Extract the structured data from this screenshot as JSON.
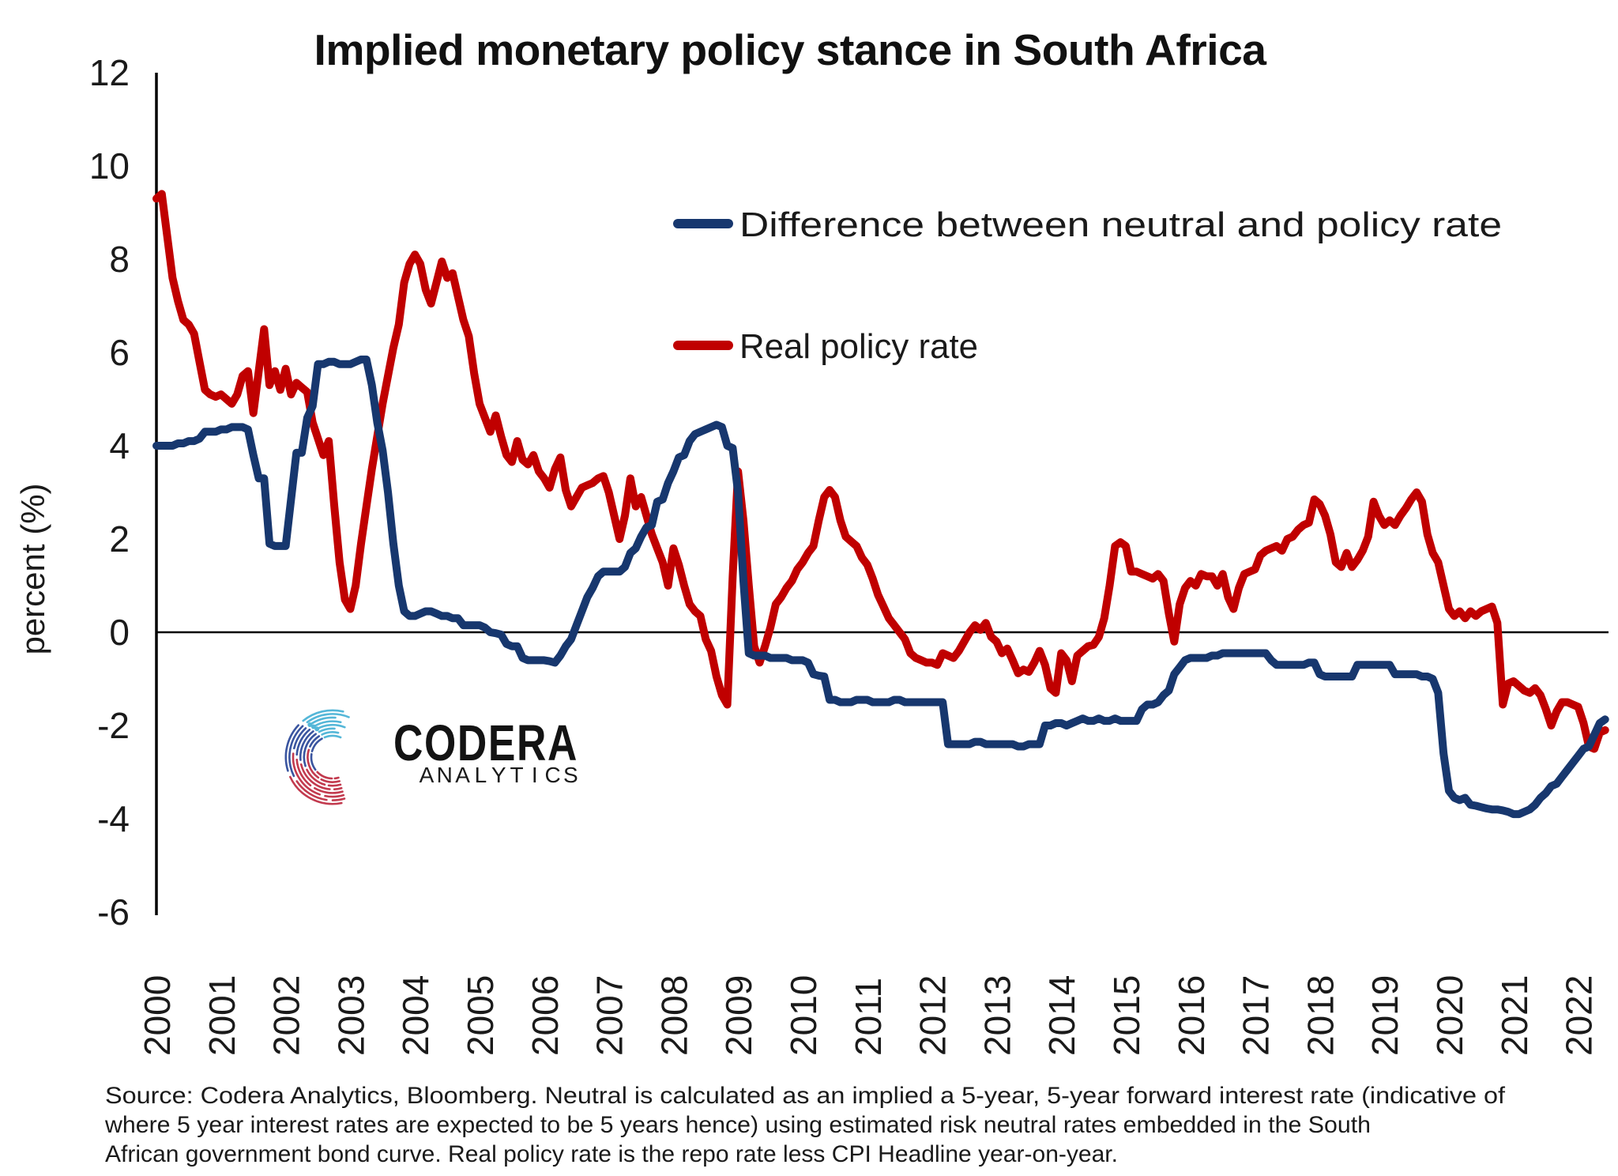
{
  "title": "Implied monetary policy stance in South Africa",
  "legend": {
    "items": [
      {
        "label": "Difference between neutral and policy rate",
        "color": "#17376e"
      },
      {
        "label": "Real policy rate",
        "color": "#c00000"
      }
    ]
  },
  "y_axis": {
    "label": "percent (%)",
    "ticks": [
      "12",
      "10",
      "8",
      "6",
      "4",
      "2",
      "0",
      "-2",
      "-4",
      "-6"
    ],
    "tick_values": [
      12,
      10,
      8,
      6,
      4,
      2,
      0,
      -2,
      -4,
      -6
    ]
  },
  "x_axis": {
    "years": [
      "2000",
      "2001",
      "2002",
      "2003",
      "2004",
      "2005",
      "2006",
      "2007",
      "2008",
      "2009",
      "2010",
      "2011",
      "2012",
      "2013",
      "2014",
      "2015",
      "2016",
      "2017",
      "2018",
      "2019",
      "2020",
      "2021",
      "2022"
    ]
  },
  "source": {
    "lines": [
      "Source: Codera Analytics, Bloomberg. Neutral is calculated as an implied a 5-year, 5-year forward interest rate (indicative of",
      "where 5 year interest rates are expected to be 5 years hence) using estimated risk neutral rates embedded in the South",
      "African government bond curve. Real policy rate is the repo rate less CPI Headline year-on-year."
    ]
  },
  "logo": {
    "name": "CODERA",
    "analytics": "ANALYTICS",
    "analytics_colors": [
      "#c45a66",
      "#c45a66",
      "#c05a6b",
      "#b95e78",
      "#8f7aa9",
      "#7fb0d4",
      "#7fb0d4",
      "#82b4d8",
      "#85b8d6"
    ],
    "arc_colors": {
      "teal": "#55b7d8",
      "blue": "#3a55a0",
      "red": "#c23a4e"
    }
  },
  "chart_data": {
    "type": "line",
    "frequency": "monthly",
    "x_start": "2000-01",
    "x_end": "2022-06",
    "xlabel": "",
    "ylabel": "percent (%)",
    "ylim": [
      -6,
      12
    ],
    "grid": false,
    "legend_position": "upper right inside plot",
    "series": [
      {
        "name": "Difference between neutral and policy rate",
        "color": "#17376e",
        "values": [
          4.0,
          4.0,
          4.0,
          4.0,
          4.05,
          4.05,
          4.1,
          4.1,
          4.15,
          4.3,
          4.3,
          4.3,
          4.35,
          4.35,
          4.4,
          4.4,
          4.4,
          4.35,
          3.8,
          3.3,
          3.3,
          1.9,
          1.85,
          1.85,
          1.85,
          2.85,
          3.85,
          3.85,
          4.6,
          4.85,
          5.75,
          5.75,
          5.8,
          5.8,
          5.75,
          5.75,
          5.75,
          5.8,
          5.85,
          5.85,
          5.3,
          4.5,
          3.9,
          3.0,
          1.9,
          1.0,
          0.45,
          0.35,
          0.35,
          0.4,
          0.45,
          0.45,
          0.4,
          0.35,
          0.35,
          0.3,
          0.3,
          0.15,
          0.15,
          0.15,
          0.15,
          0.1,
          0.0,
          -0.02,
          -0.05,
          -0.25,
          -0.3,
          -0.3,
          -0.55,
          -0.6,
          -0.6,
          -0.6,
          -0.6,
          -0.62,
          -0.65,
          -0.5,
          -0.3,
          -0.15,
          0.15,
          0.45,
          0.75,
          0.95,
          1.2,
          1.3,
          1.3,
          1.3,
          1.3,
          1.4,
          1.7,
          1.8,
          2.05,
          2.25,
          2.3,
          2.8,
          2.85,
          3.2,
          3.45,
          3.75,
          3.8,
          4.1,
          4.25,
          4.3,
          4.35,
          4.4,
          4.45,
          4.4,
          4.0,
          3.95,
          3.0,
          1.1,
          -0.45,
          -0.5,
          -0.5,
          -0.5,
          -0.55,
          -0.55,
          -0.55,
          -0.55,
          -0.6,
          -0.6,
          -0.6,
          -0.65,
          -0.9,
          -0.93,
          -0.95,
          -1.45,
          -1.45,
          -1.5,
          -1.5,
          -1.5,
          -1.45,
          -1.45,
          -1.45,
          -1.5,
          -1.5,
          -1.5,
          -1.5,
          -1.45,
          -1.45,
          -1.5,
          -1.5,
          -1.5,
          -1.5,
          -1.5,
          -1.5,
          -1.5,
          -1.5,
          -2.4,
          -2.4,
          -2.4,
          -2.4,
          -2.4,
          -2.35,
          -2.35,
          -2.4,
          -2.4,
          -2.4,
          -2.4,
          -2.4,
          -2.4,
          -2.45,
          -2.45,
          -2.4,
          -2.4,
          -2.4,
          -2.0,
          -2.0,
          -1.95,
          -1.95,
          -2.0,
          -1.95,
          -1.9,
          -1.85,
          -1.9,
          -1.9,
          -1.85,
          -1.9,
          -1.9,
          -1.85,
          -1.9,
          -1.9,
          -1.9,
          -1.9,
          -1.65,
          -1.55,
          -1.55,
          -1.5,
          -1.35,
          -1.25,
          -0.9,
          -0.75,
          -0.6,
          -0.55,
          -0.55,
          -0.55,
          -0.55,
          -0.5,
          -0.5,
          -0.45,
          -0.45,
          -0.45,
          -0.45,
          -0.45,
          -0.45,
          -0.45,
          -0.45,
          -0.45,
          -0.6,
          -0.7,
          -0.7,
          -0.7,
          -0.7,
          -0.7,
          -0.7,
          -0.65,
          -0.65,
          -0.9,
          -0.95,
          -0.95,
          -0.95,
          -0.95,
          -0.95,
          -0.95,
          -0.7,
          -0.7,
          -0.7,
          -0.7,
          -0.7,
          -0.7,
          -0.7,
          -0.9,
          -0.9,
          -0.9,
          -0.9,
          -0.9,
          -0.95,
          -0.95,
          -1.0,
          -1.3,
          -2.6,
          -3.4,
          -3.55,
          -3.6,
          -3.55,
          -3.7,
          -3.72,
          -3.75,
          -3.78,
          -3.8,
          -3.8,
          -3.82,
          -3.85,
          -3.9,
          -3.9,
          -3.85,
          -3.8,
          -3.7,
          -3.55,
          -3.45,
          -3.3,
          -3.25,
          -3.1,
          -2.95,
          -2.8,
          -2.65,
          -2.5,
          -2.45,
          -2.2,
          -1.95,
          -1.87
        ]
      },
      {
        "name": "Real policy rate",
        "color": "#c00000",
        "values": [
          9.3,
          9.4,
          8.5,
          7.6,
          7.1,
          6.7,
          6.6,
          6.4,
          5.8,
          5.2,
          5.1,
          5.05,
          5.1,
          5.0,
          4.9,
          5.1,
          5.5,
          5.6,
          4.7,
          5.6,
          6.5,
          5.3,
          5.6,
          5.2,
          5.65,
          5.1,
          5.35,
          5.25,
          5.15,
          4.5,
          4.15,
          3.8,
          4.1,
          2.75,
          1.5,
          0.7,
          0.5,
          1.0,
          1.9,
          2.7,
          3.5,
          4.2,
          4.9,
          5.5,
          6.1,
          6.6,
          7.5,
          7.9,
          8.1,
          7.9,
          7.35,
          7.05,
          7.5,
          7.95,
          7.6,
          7.7,
          7.2,
          6.7,
          6.35,
          5.55,
          4.9,
          4.6,
          4.3,
          4.65,
          4.2,
          3.8,
          3.65,
          4.1,
          3.7,
          3.6,
          3.8,
          3.45,
          3.3,
          3.1,
          3.5,
          3.75,
          3.05,
          2.7,
          2.9,
          3.1,
          3.15,
          3.2,
          3.3,
          3.35,
          3.0,
          2.5,
          2.0,
          2.5,
          3.3,
          2.7,
          2.9,
          2.5,
          2.1,
          1.8,
          1.5,
          1.0,
          1.8,
          1.45,
          1.0,
          0.6,
          0.45,
          0.35,
          -0.15,
          -0.4,
          -0.95,
          -1.35,
          -1.55,
          1.2,
          3.45,
          2.4,
          1.0,
          -0.3,
          -0.65,
          -0.3,
          0.1,
          0.6,
          0.75,
          0.95,
          1.1,
          1.35,
          1.5,
          1.7,
          1.85,
          2.4,
          2.9,
          3.05,
          2.9,
          2.4,
          2.05,
          1.95,
          1.85,
          1.6,
          1.45,
          1.15,
          0.8,
          0.55,
          0.3,
          0.15,
          0.0,
          -0.15,
          -0.45,
          -0.55,
          -0.6,
          -0.65,
          -0.65,
          -0.7,
          -0.45,
          -0.5,
          -0.55,
          -0.4,
          -0.2,
          0.0,
          0.15,
          0.05,
          0.2,
          -0.1,
          -0.2,
          -0.45,
          -0.35,
          -0.6,
          -0.88,
          -0.8,
          -0.85,
          -0.65,
          -0.4,
          -0.7,
          -1.2,
          -1.3,
          -0.45,
          -0.6,
          -1.05,
          -0.5,
          -0.4,
          -0.3,
          -0.27,
          -0.1,
          0.3,
          1.0,
          1.85,
          1.93,
          1.85,
          1.3,
          1.3,
          1.25,
          1.2,
          1.15,
          1.25,
          1.1,
          0.4,
          -0.2,
          0.6,
          0.95,
          1.1,
          1.0,
          1.25,
          1.2,
          1.2,
          1.0,
          1.25,
          0.75,
          0.5,
          0.95,
          1.25,
          1.3,
          1.35,
          1.65,
          1.75,
          1.8,
          1.85,
          1.75,
          2.0,
          2.05,
          2.2,
          2.3,
          2.35,
          2.85,
          2.75,
          2.5,
          2.1,
          1.5,
          1.4,
          1.7,
          1.4,
          1.55,
          1.75,
          2.05,
          2.8,
          2.5,
          2.3,
          2.4,
          2.3,
          2.5,
          2.66,
          2.85,
          3.0,
          2.8,
          2.1,
          1.7,
          1.5,
          1.0,
          0.5,
          0.35,
          0.45,
          0.3,
          0.45,
          0.35,
          0.45,
          0.5,
          0.55,
          0.2,
          -1.55,
          -1.1,
          -1.05,
          -1.15,
          -1.25,
          -1.3,
          -1.2,
          -1.35,
          -1.65,
          -2.0,
          -1.7,
          -1.5,
          -1.5,
          -1.55,
          -1.6,
          -1.95,
          -2.45,
          -2.5,
          -2.15,
          -2.1
        ]
      }
    ]
  }
}
